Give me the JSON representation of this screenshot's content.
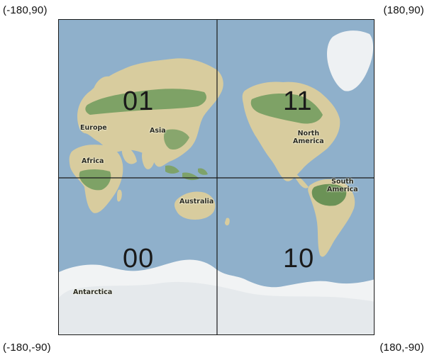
{
  "corners": {
    "top_left": "(-180,90)",
    "top_right": "(180,90)",
    "bottom_left": "(-180,-90)",
    "bottom_right": "(180,-90)"
  },
  "quadrants": {
    "top_left": "01",
    "top_right": "11",
    "bottom_left": "00",
    "bottom_right": "10"
  },
  "continents": {
    "europe": "Europe",
    "asia": "Asia",
    "africa": "Africa",
    "australia": "Australia",
    "north_america": "North\nAmerica",
    "south_america": "South\nAmerica",
    "antarctica": "Antarctica"
  },
  "colors": {
    "ocean": "#8fb0cb",
    "land": "#d8cc9e",
    "forest": "#6e9a5c",
    "ice": "#f1f3f4",
    "grid": "#1a1a1a"
  }
}
